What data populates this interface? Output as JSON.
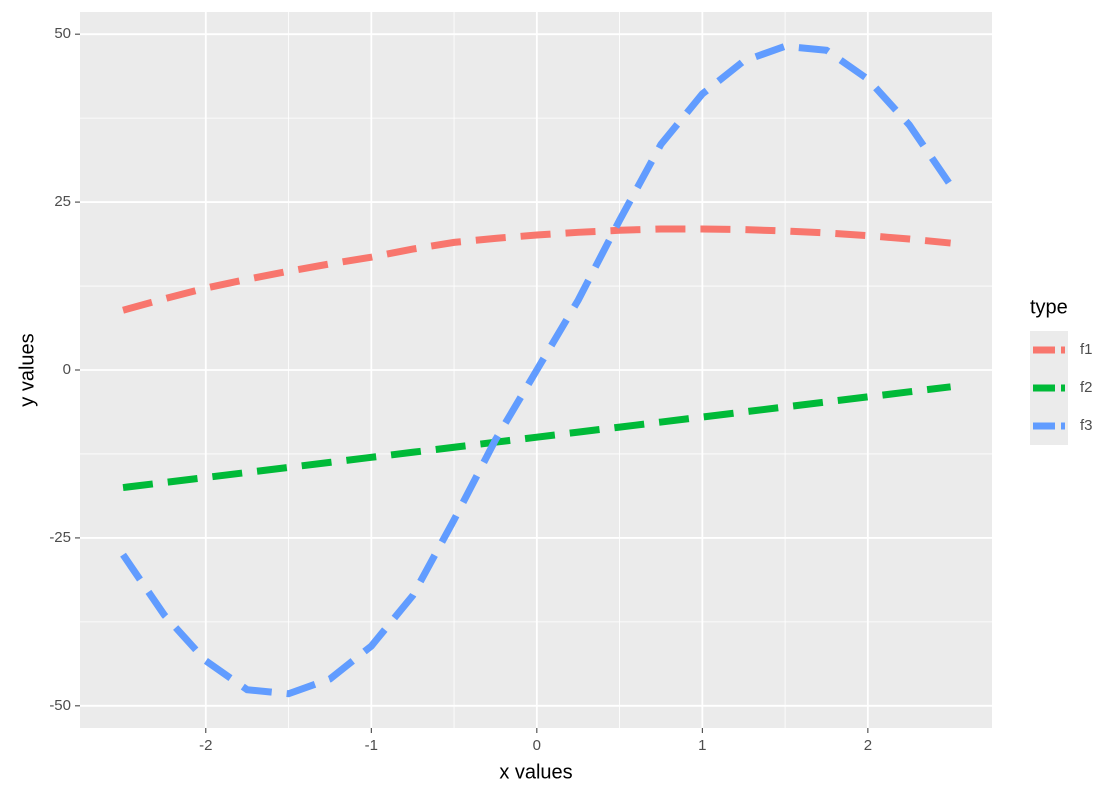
{
  "chart_data": {
    "type": "line",
    "x_label": "x values",
    "y_label": "y values",
    "legend_title": "type",
    "legend_position": "right",
    "x": [
      -2.5,
      -2.25,
      -2,
      -1.75,
      -1.5,
      -1.25,
      -1,
      -0.75,
      -0.5,
      -0.25,
      0,
      0.25,
      0.5,
      0.75,
      1,
      1.25,
      1.5,
      1.75,
      2,
      2.25,
      2.5
    ],
    "series": [
      {
        "name": "f1",
        "color": "#F8766D",
        "values": [
          8.9,
          10.6,
          12.2,
          13.5,
          14.7,
          15.8,
          16.8,
          18.0,
          19.0,
          19.6,
          20.1,
          20.5,
          20.8,
          21.0,
          21.0,
          20.9,
          20.7,
          20.4,
          20.0,
          19.5,
          18.9
        ]
      },
      {
        "name": "f2",
        "color": "#00BA38",
        "values": [
          -17.5,
          -16.75,
          -16,
          -15.25,
          -14.5,
          -13.75,
          -13,
          -12.25,
          -11.5,
          -10.75,
          -10,
          -9.25,
          -8.5,
          -7.75,
          -7,
          -6.25,
          -5.5,
          -4.75,
          -4,
          -3.25,
          -2.5
        ]
      },
      {
        "name": "f3",
        "color": "#619CFF",
        "values": [
          -27.5,
          -36.5,
          -43.3,
          -47.6,
          -48.2,
          -46,
          -41.1,
          -33.6,
          -22.3,
          -10.4,
          0,
          10.4,
          22.3,
          33.6,
          41.1,
          46,
          48.2,
          47.6,
          43.3,
          36.5,
          27.5
        ]
      }
    ],
    "xlim": [
      -2.76,
      2.75
    ],
    "ylim": [
      -53.3,
      53.3
    ],
    "xticks": [
      -2,
      -1,
      0,
      1,
      2
    ],
    "yticks": [
      -50,
      -25,
      0,
      25,
      50
    ],
    "grid": true,
    "line_style": "dashed"
  }
}
